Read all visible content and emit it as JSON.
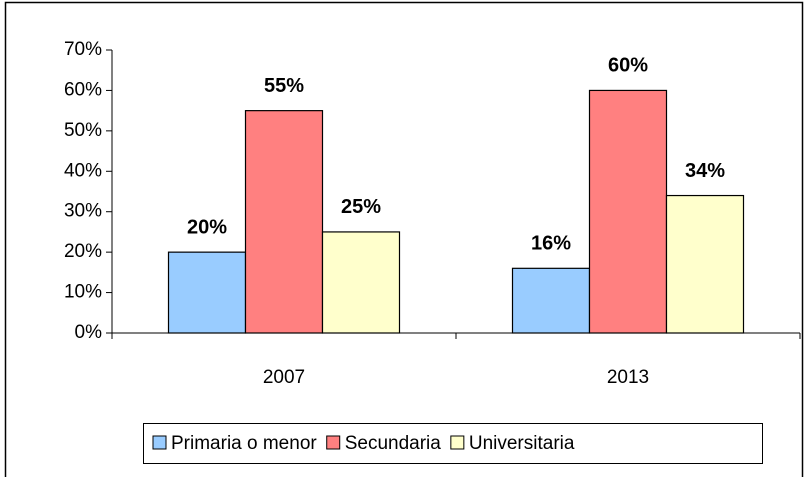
{
  "chart_data": {
    "type": "bar",
    "categories": [
      "2007",
      "2013"
    ],
    "series": [
      {
        "name": "Primaria o menor",
        "color": "#99ccff",
        "values": [
          20,
          16
        ],
        "value_labels": [
          "20%",
          "16%"
        ]
      },
      {
        "name": "Secundaria",
        "color": "#ff8080",
        "values": [
          55,
          60
        ],
        "value_labels": [
          "55%",
          "60%"
        ]
      },
      {
        "name": "Universitaria",
        "color": "#ffffcc",
        "values": [
          25,
          34
        ],
        "value_labels": [
          "25%",
          "34%"
        ]
      }
    ],
    "ylim": [
      0,
      70
    ],
    "yticks": [
      {
        "value": 0,
        "label": "0%"
      },
      {
        "value": 10,
        "label": "10%"
      },
      {
        "value": 20,
        "label": "20%"
      },
      {
        "value": 30,
        "label": "30%"
      },
      {
        "value": 40,
        "label": "40%"
      },
      {
        "value": 50,
        "label": "50%"
      },
      {
        "value": 60,
        "label": "60%"
      },
      {
        "value": 70,
        "label": "70%"
      }
    ],
    "legend": "bottom"
  }
}
